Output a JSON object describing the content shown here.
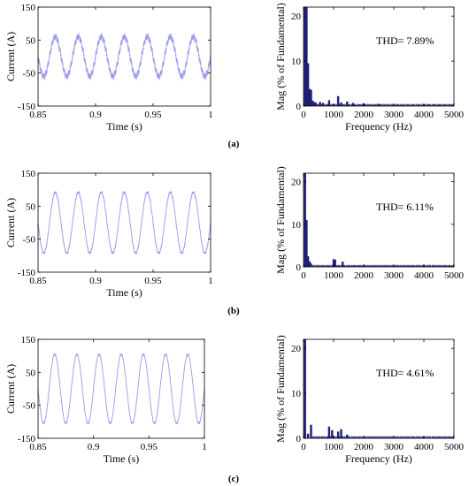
{
  "chart_data": [
    {
      "type": "line",
      "panel": "a",
      "xlabel": "Time (s)",
      "ylabel": "Current (A)",
      "xlim": [
        0.85,
        1
      ],
      "ylim": [
        -150,
        150
      ],
      "xticks": [
        "0.85",
        "0.9",
        "0.95",
        "1"
      ],
      "yticks": [
        "150",
        "50",
        "-50",
        "-150"
      ],
      "xtick_values": [
        0.85,
        0.9,
        0.95,
        1
      ],
      "ytick_values": [
        150,
        50,
        -50,
        -150
      ],
      "series": [
        {
          "amplitude": 60,
          "frequency_hz": 50,
          "ripple": 8,
          "color": "#9a9af0"
        }
      ]
    },
    {
      "type": "bar",
      "panel": "a",
      "xlabel": "Frequency (Hz)",
      "ylabel": "Mag (% of Fundamental)",
      "xlim": [
        0,
        5000
      ],
      "ylim": [
        0,
        22
      ],
      "xticks": [
        "0",
        "1000",
        "2000",
        "3000",
        "4000",
        "5000"
      ],
      "yticks": [
        "20",
        "10",
        "0"
      ],
      "xtick_values": [
        0,
        1000,
        2000,
        3000,
        4000,
        5000
      ],
      "ytick_values": [
        20,
        10,
        0
      ],
      "annotation": "THD= 7.89%",
      "x": [
        50,
        100,
        150,
        200,
        250,
        300,
        350,
        400,
        550,
        650,
        850,
        1150,
        1250,
        1450,
        1650,
        2000,
        2500
      ],
      "values": [
        22,
        22,
        9.5,
        3.8,
        3.6,
        1.2,
        0.9,
        0.8,
        0.9,
        0.7,
        1.3,
        2.2,
        0.8,
        1.0,
        0.7,
        0.6,
        0.5
      ],
      "color": "#1f1f7a"
    },
    {
      "type": "line",
      "panel": "b",
      "xlabel": "Time (s)",
      "ylabel": "Current (A)",
      "xlim": [
        0.85,
        1
      ],
      "ylim": [
        -150,
        150
      ],
      "xticks": [
        "0.85",
        "0.9",
        "0.95",
        "1"
      ],
      "yticks": [
        "150",
        "50",
        "-50",
        "-150"
      ],
      "xtick_values": [
        0.85,
        0.9,
        0.95,
        1
      ],
      "ytick_values": [
        150,
        50,
        -50,
        -150
      ],
      "series": [
        {
          "amplitude": 92,
          "frequency_hz": 50,
          "ripple": 3,
          "color": "#9a9af0"
        }
      ]
    },
    {
      "type": "bar",
      "panel": "b",
      "xlabel": "",
      "ylabel": "Mag (% of Fundamental)",
      "xlim": [
        0,
        5000
      ],
      "ylim": [
        0,
        22
      ],
      "xticks": [
        "0",
        "1000",
        "2000",
        "3000",
        "4000",
        "5000"
      ],
      "yticks": [
        "20",
        "10",
        "0"
      ],
      "xtick_values": [
        0,
        1000,
        2000,
        3000,
        4000,
        5000
      ],
      "ytick_values": [
        20,
        10,
        0
      ],
      "annotation": "THD= 6.11%",
      "x": [
        50,
        100,
        150,
        200,
        250,
        1000,
        1050,
        1300
      ],
      "values": [
        22,
        11,
        2.5,
        1.3,
        0.8,
        1.8,
        1.7,
        1.2
      ],
      "color": "#1f1f7a"
    },
    {
      "type": "line",
      "panel": "c",
      "xlabel": "Time (s)",
      "ylabel": "Current (A)",
      "xlim": [
        0.85,
        1
      ],
      "ylim": [
        -150,
        150
      ],
      "xticks": [
        "0.85",
        "0.9",
        "0.95",
        "1"
      ],
      "yticks": [
        "150",
        "50",
        "-50",
        "-150"
      ],
      "xtick_values": [
        0.85,
        0.9,
        0.95,
        1
      ],
      "ytick_values": [
        150,
        50,
        -50,
        -150
      ],
      "series": [
        {
          "amplitude": 105,
          "frequency_hz": 50,
          "ripple": 2,
          "color": "#9a9af0"
        }
      ]
    },
    {
      "type": "bar",
      "panel": "c",
      "xlabel": "Frequency (Hz)",
      "ylabel": "Mag (% of Fundamental)",
      "xlim": [
        0,
        5000
      ],
      "ylim": [
        0,
        22
      ],
      "xticks": [
        "0",
        "1000",
        "2000",
        "3000",
        "4000",
        "5000"
      ],
      "yticks": [
        "20",
        "10",
        "0"
      ],
      "xtick_values": [
        0,
        1000,
        2000,
        3000,
        4000,
        5000
      ],
      "ytick_values": [
        20,
        10,
        0
      ],
      "annotation": "THD= 4.61%",
      "x": [
        50,
        150,
        250,
        850,
        950,
        1150,
        1250,
        1450
      ],
      "values": [
        22,
        1.0,
        3.0,
        2.6,
        1.8,
        1.5,
        2.0,
        0.8
      ],
      "color": "#1f1f7a"
    }
  ],
  "panel_labels": [
    "(a)",
    "(b)",
    "(c)"
  ]
}
